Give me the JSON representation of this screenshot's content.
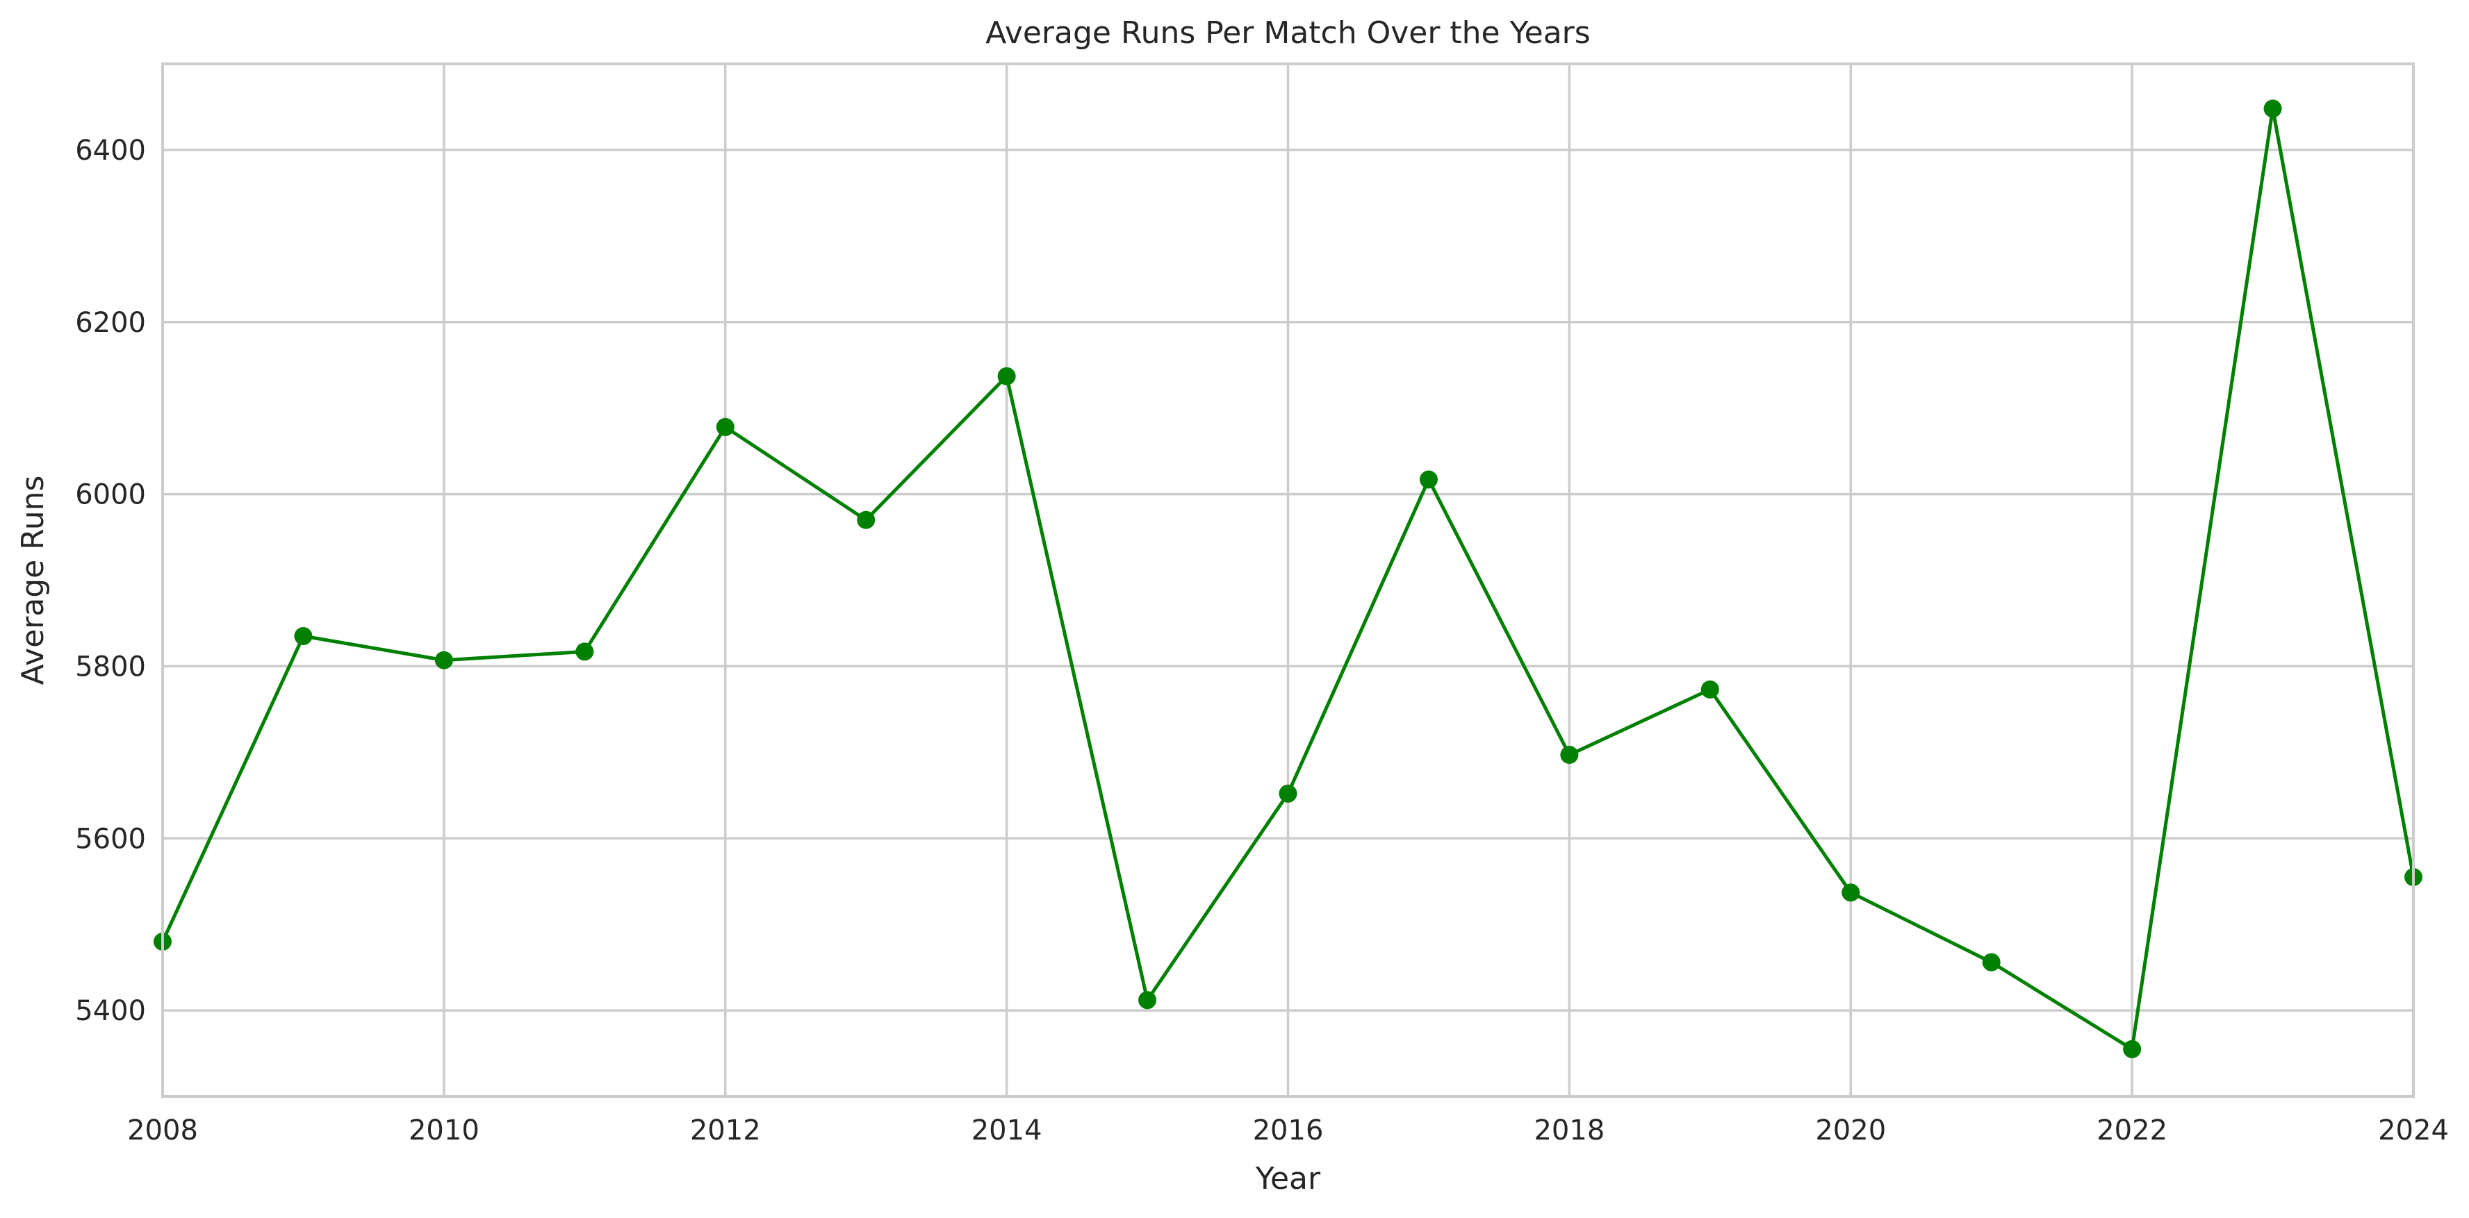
{
  "chart_data": {
    "type": "line",
    "title": "Average Runs Per Match Over the Years",
    "xlabel": "Year",
    "ylabel": "Average Runs",
    "xlim": [
      2008,
      2024
    ],
    "ylim": [
      5300,
      6500
    ],
    "xticks": [
      2008,
      2010,
      2012,
      2014,
      2016,
      2018,
      2020,
      2022,
      2024
    ],
    "yticks": [
      5400,
      5600,
      5800,
      6000,
      6200,
      6400
    ],
    "grid": true,
    "color": "#008000",
    "marker": "circle",
    "series": [
      {
        "name": "Average Runs",
        "x": [
          2008,
          2009,
          2010,
          2011,
          2012,
          2013,
          2014,
          2015,
          2016,
          2017,
          2018,
          2019,
          2020,
          2021,
          2022,
          2023,
          2024
        ],
        "values": [
          5480,
          5835,
          5807,
          5817,
          6078,
          5970,
          6137,
          5412,
          5652,
          6017,
          5697,
          5773,
          5537,
          5456,
          5355,
          6448,
          5555
        ]
      }
    ]
  }
}
